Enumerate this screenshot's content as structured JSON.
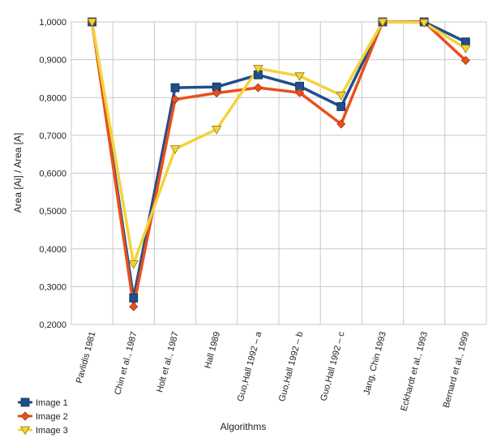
{
  "chart_data": {
    "type": "line",
    "xlabel": "Algorithms",
    "ylabel": "Area [Ai] / Area [A]",
    "ylim": [
      0.2,
      1.0
    ],
    "ytick_labels": [
      "0,2000",
      "0,3000",
      "0,4000",
      "0,5000",
      "0,6000",
      "0,7000",
      "0,8000",
      "0,9000",
      "1,0000"
    ],
    "yticks": [
      0.2,
      0.3,
      0.4,
      0.5,
      0.6,
      0.7,
      0.8,
      0.9,
      1.0
    ],
    "grid": true,
    "legend_position": "bottom-left",
    "categories": [
      "Pavlidis 1981",
      "Chin et al., 1987",
      "Holt et al., 1987",
      "Hall 1989",
      "Guo,Hall 1992 – a",
      "Guo,Hall 1992 – b",
      "Guo,Hall 1992 – c",
      "Jang, Chin 1993",
      "Eckhardt et al., 1993",
      "Bernard et al., 1999"
    ],
    "series": [
      {
        "name": "Image 1",
        "color": "#1f4e8c",
        "marker": "square",
        "values": [
          1.0,
          0.27,
          0.826,
          0.828,
          0.86,
          0.83,
          0.776,
          1.0,
          1.0,
          0.947
        ]
      },
      {
        "name": "Image 2",
        "color": "#e8501e",
        "marker": "diamond",
        "values": [
          1.0,
          0.247,
          0.795,
          0.812,
          0.826,
          0.813,
          0.73,
          1.0,
          1.0,
          0.898
        ]
      },
      {
        "name": "Image 3",
        "color": "#f2d43a",
        "marker": "triangle",
        "values": [
          1.0,
          0.36,
          0.664,
          0.716,
          0.877,
          0.857,
          0.806,
          1.0,
          0.998,
          0.93
        ]
      }
    ]
  }
}
